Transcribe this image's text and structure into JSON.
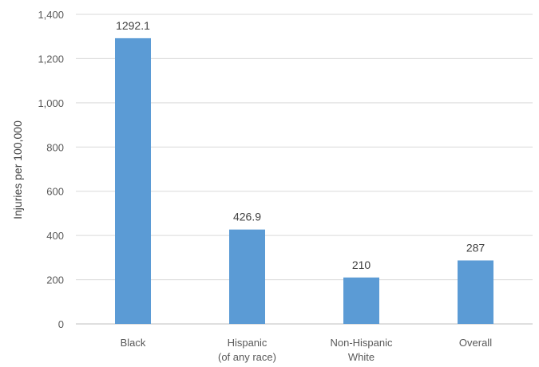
{
  "chart_data": {
    "type": "bar",
    "categories": [
      [
        "Black"
      ],
      [
        "Hispanic",
        "(of any race)"
      ],
      [
        "Non-Hispanic",
        "White"
      ],
      [
        "Overall"
      ]
    ],
    "values": [
      1292.1,
      426.9,
      210,
      287
    ],
    "value_labels": [
      "1292.1",
      "426.9",
      "210",
      "287"
    ],
    "title": "",
    "xlabel": "",
    "ylabel": "Injuries per 100,000",
    "ylim": [
      0,
      1400
    ],
    "yticks": [
      0,
      200,
      400,
      600,
      800,
      1000,
      1200,
      1400
    ],
    "ytick_labels": [
      "0",
      "200",
      "400",
      "600",
      "800",
      "1,000",
      "1,200",
      "1,400"
    ],
    "grid": true,
    "legend": "none",
    "colors": {
      "bar": "#5b9bd5",
      "grid": "#d9d9d9",
      "axis": "#bfbfbf"
    }
  }
}
